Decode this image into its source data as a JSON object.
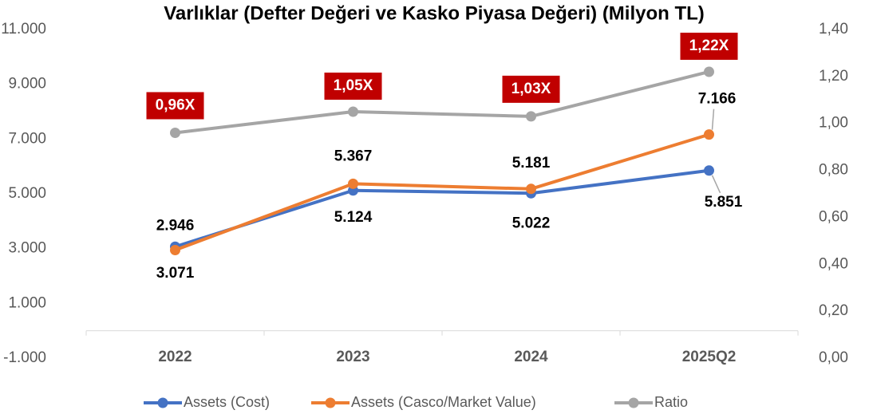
{
  "chart_data": {
    "type": "line",
    "title": "Varlıklar (Defter Değeri ve Kasko Piyasa Değeri) (Milyon TL)",
    "categories": [
      "2022",
      "2023",
      "2024",
      "2025Q2"
    ],
    "series": [
      {
        "name": "Assets (Cost)",
        "color": "#4472c4",
        "values": [
          3071,
          5124,
          5022,
          5851
        ],
        "value_labels": [
          "3.071",
          "5.124",
          "5.022",
          "5.851"
        ]
      },
      {
        "name": "Assets (Casco/Market Value)",
        "color": "#ed7d31",
        "values": [
          2946,
          5367,
          5181,
          7166
        ],
        "value_labels": [
          "2.946",
          "5.367",
          "5.181",
          "7.166"
        ]
      },
      {
        "name": "Ratio",
        "color": "#a5a5a5",
        "axis": "y2",
        "values": [
          0.96,
          1.05,
          1.03,
          1.22
        ],
        "value_labels": [
          "0,96X",
          "1,05X",
          "1,03X",
          "1,22X"
        ]
      }
    ],
    "ylim": [
      -1000,
      11000
    ],
    "yticks": [
      {
        "value": -1000,
        "label": "-1.000"
      },
      {
        "value": 1000,
        "label": "1.000"
      },
      {
        "value": 3000,
        "label": "3.000"
      },
      {
        "value": 5000,
        "label": "5.000"
      },
      {
        "value": 7000,
        "label": "7.000"
      },
      {
        "value": 9000,
        "label": "9.000"
      },
      {
        "value": 11000,
        "label": "11.000"
      }
    ],
    "y2lim": [
      0,
      1.4
    ],
    "y2ticks": [
      {
        "value": 0,
        "label": "0,00"
      },
      {
        "value": 0.2,
        "label": "0,20"
      },
      {
        "value": 0.4,
        "label": "0,40"
      },
      {
        "value": 0.6,
        "label": "0,60"
      },
      {
        "value": 0.8,
        "label": "0,80"
      },
      {
        "value": 1.0,
        "label": "1,00"
      },
      {
        "value": 1.2,
        "label": "1,20"
      },
      {
        "value": 1.4,
        "label": "1,40"
      }
    ],
    "legend": "bottom"
  }
}
